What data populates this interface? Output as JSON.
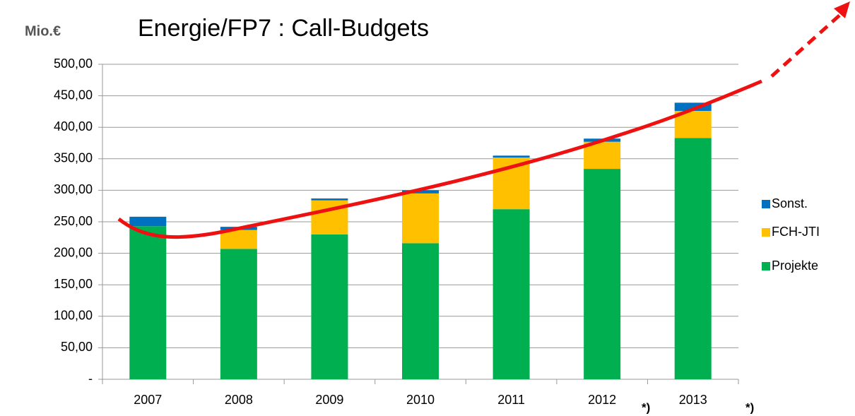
{
  "chart_data": {
    "type": "stacked_bar",
    "title": "Energie/FP7 :  Call-Budgets",
    "y_label": "Mio.€",
    "annotations": [
      "*)",
      "*)"
    ],
    "categories": [
      "2007",
      "2008",
      "2009",
      "2010",
      "2011",
      "2012",
      "2013"
    ],
    "series": [
      {
        "name": "Projekte",
        "color": "#00b050",
        "values": [
          243,
          207,
          230,
          216,
          270,
          334,
          383
        ]
      },
      {
        "name": "FCH-JTI",
        "color": "#ffc000",
        "values": [
          0,
          30,
          54,
          79,
          82,
          43,
          43
        ]
      },
      {
        "name": "Sonst.",
        "color": "#0070c0",
        "values": [
          15,
          5,
          3,
          5,
          3,
          5,
          13
        ]
      }
    ],
    "ylim": [
      0,
      500
    ],
    "yticks": [
      {
        "value": 0,
        "label": "-"
      },
      {
        "value": 50,
        "label": "50,00"
      },
      {
        "value": 100,
        "label": "100,00"
      },
      {
        "value": 150,
        "label": "150,00"
      },
      {
        "value": 200,
        "label": "200,00"
      },
      {
        "value": 250,
        "label": "250,00"
      },
      {
        "value": 300,
        "label": "300,00"
      },
      {
        "value": 350,
        "label": "350,00"
      },
      {
        "value": 400,
        "label": "400,00"
      },
      {
        "value": 450,
        "label": "450,00"
      },
      {
        "value": 500,
        "label": "500,00"
      }
    ],
    "grid": true,
    "legend": "right"
  }
}
